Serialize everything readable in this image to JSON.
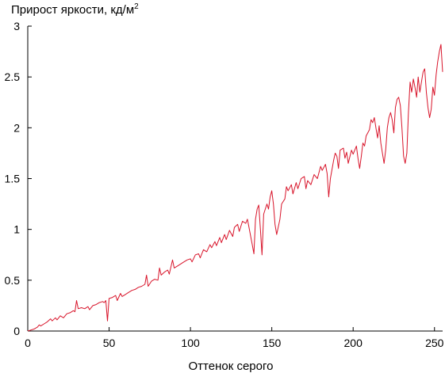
{
  "chart_data": {
    "type": "line",
    "title": "",
    "ylabel": "Прирост яркости, кд/м",
    "ylabel_superscript": "2",
    "xlabel": "Оттенок серого",
    "xlim": [
      0,
      255
    ],
    "ylim": [
      0,
      3
    ],
    "x_ticks": [
      0,
      50,
      100,
      150,
      200,
      250
    ],
    "y_ticks": [
      0,
      0.5,
      1,
      1.5,
      2,
      2.5,
      3
    ],
    "x_tick_labels": [
      "0",
      "50",
      "100",
      "150",
      "200",
      "250"
    ],
    "y_tick_labels": [
      "0",
      "0.5",
      "1",
      "1.5",
      "2",
      "2.5",
      "3"
    ],
    "grid": false,
    "legend": "none",
    "colors": {
      "line": "#d8142a",
      "axis": "#000000"
    },
    "series": [
      {
        "values": [
          [
            0,
            0.0
          ],
          [
            2,
            0.01
          ],
          [
            4,
            0.02
          ],
          [
            6,
            0.04
          ],
          [
            7,
            0.06
          ],
          [
            8,
            0.05
          ],
          [
            10,
            0.07
          ],
          [
            12,
            0.09
          ],
          [
            14,
            0.12
          ],
          [
            15,
            0.1
          ],
          [
            17,
            0.13
          ],
          [
            18,
            0.11
          ],
          [
            20,
            0.15
          ],
          [
            22,
            0.13
          ],
          [
            24,
            0.17
          ],
          [
            26,
            0.18
          ],
          [
            28,
            0.2
          ],
          [
            29,
            0.19
          ],
          [
            30,
            0.3
          ],
          [
            31,
            0.22
          ],
          [
            33,
            0.23
          ],
          [
            35,
            0.22
          ],
          [
            37,
            0.24
          ],
          [
            38,
            0.21
          ],
          [
            40,
            0.25
          ],
          [
            42,
            0.26
          ],
          [
            44,
            0.28
          ],
          [
            46,
            0.29
          ],
          [
            47,
            0.28
          ],
          [
            48,
            0.3
          ],
          [
            49,
            0.1
          ],
          [
            50,
            0.32
          ],
          [
            52,
            0.33
          ],
          [
            54,
            0.35
          ],
          [
            55,
            0.3
          ],
          [
            57,
            0.37
          ],
          [
            58,
            0.34
          ],
          [
            60,
            0.36
          ],
          [
            62,
            0.38
          ],
          [
            64,
            0.4
          ],
          [
            66,
            0.41
          ],
          [
            68,
            0.43
          ],
          [
            70,
            0.44
          ],
          [
            72,
            0.46
          ],
          [
            73,
            0.55
          ],
          [
            74,
            0.44
          ],
          [
            76,
            0.49
          ],
          [
            78,
            0.51
          ],
          [
            80,
            0.5
          ],
          [
            81,
            0.62
          ],
          [
            82,
            0.55
          ],
          [
            84,
            0.58
          ],
          [
            86,
            0.6
          ],
          [
            87,
            0.56
          ],
          [
            89,
            0.7
          ],
          [
            90,
            0.62
          ],
          [
            92,
            0.64
          ],
          [
            94,
            0.66
          ],
          [
            96,
            0.68
          ],
          [
            98,
            0.7
          ],
          [
            100,
            0.71
          ],
          [
            101,
            0.68
          ],
          [
            103,
            0.75
          ],
          [
            105,
            0.76
          ],
          [
            106,
            0.72
          ],
          [
            108,
            0.8
          ],
          [
            110,
            0.78
          ],
          [
            112,
            0.85
          ],
          [
            113,
            0.82
          ],
          [
            115,
            0.88
          ],
          [
            116,
            0.84
          ],
          [
            118,
            0.92
          ],
          [
            119,
            0.87
          ],
          [
            121,
            0.95
          ],
          [
            122,
            0.9
          ],
          [
            124,
            0.99
          ],
          [
            126,
            0.93
          ],
          [
            127,
            1.02
          ],
          [
            129,
            1.05
          ],
          [
            130,
            0.98
          ],
          [
            132,
            1.08
          ],
          [
            134,
            1.06
          ],
          [
            135,
            1.1
          ],
          [
            136,
            1.02
          ],
          [
            138,
            0.85
          ],
          [
            139,
            0.76
          ],
          [
            140,
            1.1
          ],
          [
            141,
            1.2
          ],
          [
            142,
            1.24
          ],
          [
            143,
            1.0
          ],
          [
            144,
            0.75
          ],
          [
            145,
            1.15
          ],
          [
            147,
            1.25
          ],
          [
            148,
            1.2
          ],
          [
            149,
            1.32
          ],
          [
            150,
            1.38
          ],
          [
            151,
            1.25
          ],
          [
            152,
            1.05
          ],
          [
            153,
            0.95
          ],
          [
            155,
            1.1
          ],
          [
            156,
            1.25
          ],
          [
            158,
            1.3
          ],
          [
            159,
            1.42
          ],
          [
            160,
            1.38
          ],
          [
            162,
            1.44
          ],
          [
            163,
            1.35
          ],
          [
            165,
            1.46
          ],
          [
            166,
            1.4
          ],
          [
            168,
            1.5
          ],
          [
            170,
            1.52
          ],
          [
            171,
            1.4
          ],
          [
            172,
            1.48
          ],
          [
            174,
            1.44
          ],
          [
            176,
            1.54
          ],
          [
            178,
            1.5
          ],
          [
            180,
            1.62
          ],
          [
            181,
            1.58
          ],
          [
            183,
            1.64
          ],
          [
            184,
            1.55
          ],
          [
            185,
            1.32
          ],
          [
            186,
            1.5
          ],
          [
            188,
            1.68
          ],
          [
            189,
            1.75
          ],
          [
            190,
            1.72
          ],
          [
            191,
            1.6
          ],
          [
            192,
            1.78
          ],
          [
            194,
            1.8
          ],
          [
            195,
            1.7
          ],
          [
            196,
            1.76
          ],
          [
            197,
            1.65
          ],
          [
            199,
            1.78
          ],
          [
            200,
            1.74
          ],
          [
            202,
            1.82
          ],
          [
            203,
            1.7
          ],
          [
            204,
            1.6
          ],
          [
            205,
            1.72
          ],
          [
            206,
            1.85
          ],
          [
            207,
            1.82
          ],
          [
            208,
            1.92
          ],
          [
            210,
            1.98
          ],
          [
            211,
            2.08
          ],
          [
            212,
            2.05
          ],
          [
            213,
            2.1
          ],
          [
            214,
            2.0
          ],
          [
            215,
            1.9
          ],
          [
            216,
            2.02
          ],
          [
            217,
            1.85
          ],
          [
            218,
            1.75
          ],
          [
            219,
            1.65
          ],
          [
            220,
            1.78
          ],
          [
            221,
            2.0
          ],
          [
            222,
            2.1
          ],
          [
            223,
            2.15
          ],
          [
            224,
            2.08
          ],
          [
            225,
            1.95
          ],
          [
            226,
            2.2
          ],
          [
            227,
            2.28
          ],
          [
            228,
            2.3
          ],
          [
            229,
            2.22
          ],
          [
            230,
            2.0
          ],
          [
            231,
            1.72
          ],
          [
            232,
            1.65
          ],
          [
            233,
            1.75
          ],
          [
            234,
            2.15
          ],
          [
            235,
            2.45
          ],
          [
            236,
            2.35
          ],
          [
            237,
            2.48
          ],
          [
            238,
            2.4
          ],
          [
            239,
            2.3
          ],
          [
            240,
            2.5
          ],
          [
            241,
            2.35
          ],
          [
            242,
            2.45
          ],
          [
            243,
            2.55
          ],
          [
            244,
            2.58
          ],
          [
            245,
            2.35
          ],
          [
            246,
            2.2
          ],
          [
            247,
            2.1
          ],
          [
            248,
            2.18
          ],
          [
            249,
            2.4
          ],
          [
            250,
            2.32
          ],
          [
            251,
            2.52
          ],
          [
            252,
            2.65
          ],
          [
            253,
            2.75
          ],
          [
            254,
            2.82
          ],
          [
            255,
            2.55
          ]
        ]
      }
    ]
  }
}
